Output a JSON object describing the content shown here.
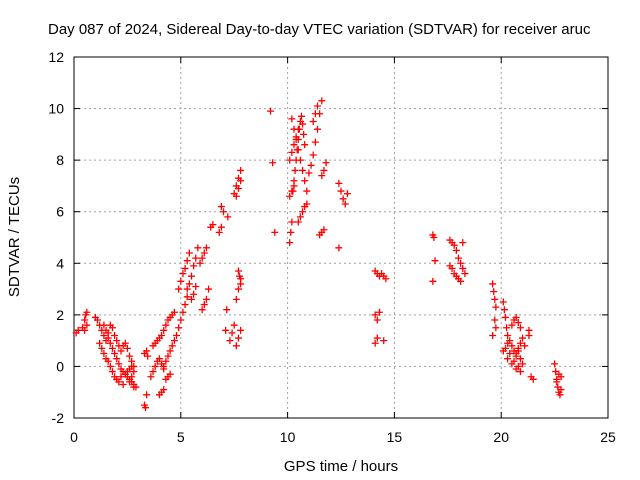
{
  "chart_data": {
    "type": "scatter",
    "title": "Day 087 of 2024, Sidereal Day-to-day VTEC variation (SDTVAR) for receiver aruc",
    "xlabel": "GPS time / hours",
    "ylabel": "SDTVAR / TECUs",
    "xlim": [
      0,
      25
    ],
    "ylim": [
      -2,
      12
    ],
    "xticks": [
      "0",
      "5",
      "10",
      "15",
      "20",
      "25"
    ],
    "yticks": [
      "-2",
      "0",
      "2",
      "4",
      "6",
      "8",
      "10",
      "12"
    ],
    "grid": true,
    "marker": "+",
    "series": [
      {
        "name": "SDTVAR",
        "color": "#ff0000",
        "x": [
          0.1,
          0.2,
          0.4,
          0.5,
          0.55,
          0.6,
          0.5,
          0.6,
          1.0,
          1.1,
          1.2,
          1.3,
          1.4,
          1.5,
          1.6,
          1.7,
          1.8,
          1.9,
          2.0,
          2.1,
          2.2,
          2.3,
          2.4,
          2.5,
          2.6,
          2.7,
          2.8,
          1.4,
          1.5,
          1.6,
          1.7,
          1.8,
          1.9,
          2.0,
          2.1,
          2.2,
          2.3,
          2.4,
          2.5,
          2.6,
          2.7,
          2.8,
          2.9,
          1.2,
          1.3,
          1.4,
          1.5,
          1.6,
          1.7,
          1.8,
          1.9,
          2.0,
          2.1,
          2.2,
          2.3,
          2.4,
          2.5,
          2.6,
          2.7,
          2.8,
          2.6,
          2.7,
          2.8,
          3.3,
          3.35,
          3.4,
          3.3,
          3.4,
          3.45,
          3.6,
          3.7,
          3.8,
          3.9,
          4.0,
          4.1,
          4.2,
          3.7,
          3.8,
          3.9,
          4.0,
          4.1,
          4.2,
          4.3,
          4.4,
          4.5,
          4.6,
          4.7,
          4.2,
          4.3,
          4.4,
          4.5,
          4.6,
          4.7,
          4.0,
          4.1,
          4.2,
          4.3,
          4.4,
          4.5,
          4.8,
          4.9,
          5.0,
          5.1,
          5.2,
          5.3,
          4.9,
          5.0,
          5.1,
          5.2,
          5.3,
          5.4,
          5.3,
          5.4,
          5.5,
          5.6,
          5.7,
          5.8,
          5.5,
          5.6,
          5.7,
          5.9,
          6.0,
          6.1,
          6.2,
          6.0,
          6.1,
          6.2,
          6.3,
          6.4,
          6.5,
          6.8,
          6.9,
          7.0,
          6.9,
          7.1,
          7.2,
          7.15,
          7.3,
          7.4,
          7.5,
          7.6,
          7.7,
          7.8,
          7.7,
          7.8,
          7.75,
          7.5,
          7.6,
          7.7,
          7.8,
          7.6,
          7.7,
          7.8,
          7.6,
          7.7,
          7.8,
          9.2,
          9.3,
          9.4,
          10.1,
          10.15,
          10.2,
          10.25,
          10.3,
          10.35,
          10.4,
          10.45,
          10.5,
          10.55,
          10.6,
          10.65,
          10.7,
          10.75,
          10.8,
          10.2,
          10.3,
          10.4,
          10.5,
          10.6,
          10.7,
          10.8,
          10.9,
          10.1,
          10.2,
          10.3,
          10.4,
          10.5,
          10.1,
          10.2,
          10.3,
          10.5,
          10.6,
          10.7,
          10.8,
          10.9,
          11.0,
          11.1,
          11.2,
          11.3,
          11.4,
          11.5,
          11.6,
          11.2,
          11.3,
          11.4,
          11.6,
          11.7,
          11.8,
          11.5,
          11.6,
          11.7,
          12.4,
          12.5,
          12.6,
          12.7,
          12.8,
          12.4,
          14.1,
          14.2,
          14.3,
          14.4,
          14.5,
          14.6,
          14.1,
          14.2,
          14.3,
          14.1,
          14.2,
          14.5,
          16.8,
          16.85,
          16.9,
          16.8,
          17.6,
          17.7,
          17.8,
          17.9,
          18.0,
          18.1,
          18.2,
          18.3,
          17.6,
          17.7,
          17.8,
          17.9,
          18.0,
          18.1,
          18.2,
          19.6,
          19.65,
          19.7,
          19.75,
          19.7,
          19.75,
          19.6,
          20.1,
          20.15,
          20.2,
          20.25,
          20.3,
          20.1,
          20.2,
          20.3,
          20.4,
          20.5,
          20.6,
          20.7,
          20.8,
          20.9,
          21.0,
          21.1,
          20.3,
          20.4,
          20.5,
          20.6,
          20.7,
          20.8,
          20.9,
          21.0,
          20.5,
          20.6,
          20.7,
          20.8,
          20.9,
          20.7,
          20.8,
          20.9,
          21.3,
          21.4,
          21.5,
          21.3,
          22.5,
          22.55,
          22.6,
          22.65,
          22.7,
          22.75,
          22.8,
          22.6,
          22.7,
          22.8
        ],
        "y": [
          1.3,
          1.4,
          1.5,
          1.8,
          2.0,
          2.1,
          1.4,
          1.6,
          1.9,
          1.8,
          1.6,
          1.4,
          1.2,
          1.0,
          1.3,
          1.6,
          1.5,
          1.2,
          1.0,
          0.8,
          0.6,
          0.8,
          0.9,
          0.7,
          0.4,
          0.2,
          0.0,
          1.6,
          1.4,
          1.1,
          0.9,
          0.7,
          0.5,
          0.3,
          0.1,
          -0.1,
          -0.2,
          -0.3,
          -0.4,
          -0.5,
          -0.6,
          -0.7,
          -0.8,
          0.9,
          0.7,
          0.5,
          0.3,
          0.2,
          0.0,
          -0.2,
          -0.4,
          -0.5,
          -0.6,
          -0.4,
          -0.7,
          -0.3,
          -0.2,
          -0.1,
          0.0,
          -0.2,
          -0.6,
          -0.4,
          -0.8,
          -1.5,
          -1.6,
          -1.1,
          0.5,
          0.6,
          0.4,
          -0.4,
          -0.2,
          0.0,
          0.2,
          0.3,
          0.1,
          -0.1,
          0.8,
          0.9,
          1.0,
          1.1,
          1.2,
          1.4,
          1.6,
          1.8,
          1.9,
          2.0,
          2.1,
          0.0,
          0.2,
          0.4,
          0.6,
          0.8,
          1.0,
          -1.1,
          -1.0,
          -0.9,
          -0.5,
          -0.4,
          -0.3,
          1.2,
          1.5,
          1.8,
          2.1,
          2.4,
          2.7,
          3.0,
          3.3,
          3.6,
          3.8,
          4.1,
          4.4,
          3.0,
          3.2,
          3.5,
          3.9,
          4.2,
          4.6,
          2.6,
          2.8,
          3.1,
          4.0,
          4.2,
          4.4,
          4.6,
          2.2,
          2.4,
          2.6,
          3.0,
          5.4,
          5.5,
          5.2,
          5.4,
          6.0,
          6.2,
          1.4,
          5.8,
          2.2,
          1.0,
          1.3,
          1.6,
          2.6,
          3.0,
          3.4,
          3.7,
          3.2,
          3.5,
          6.7,
          7.0,
          7.3,
          7.6,
          6.6,
          6.9,
          7.2,
          0.8,
          1.1,
          1.4,
          9.9,
          7.9,
          5.2,
          4.8,
          5.2,
          5.6,
          6.8,
          7.2,
          7.6,
          8.0,
          8.4,
          8.8,
          9.2,
          9.5,
          9.7,
          9.4,
          9.0,
          8.6,
          9.6,
          9.2,
          8.8,
          8.4,
          8.0,
          7.6,
          7.2,
          6.8,
          8.0,
          8.3,
          8.6,
          8.9,
          9.2,
          6.6,
          6.8,
          7.0,
          5.6,
          5.8,
          6.0,
          6.2,
          6.3,
          7.5,
          7.8,
          8.2,
          8.7,
          9.2,
          9.8,
          10.3,
          9.5,
          9.8,
          10.1,
          7.4,
          7.6,
          7.9,
          5.1,
          5.2,
          5.3,
          7.1,
          6.8,
          6.5,
          6.3,
          6.7,
          4.6,
          3.7,
          3.6,
          3.5,
          3.6,
          3.5,
          3.4,
          2.0,
          1.8,
          2.1,
          0.9,
          1.1,
          1.0,
          5.1,
          5.0,
          4.1,
          3.3,
          4.9,
          4.8,
          4.7,
          4.5,
          4.2,
          4.0,
          3.8,
          3.6,
          3.9,
          3.8,
          3.6,
          3.5,
          3.4,
          3.3,
          4.8,
          3.2,
          2.9,
          2.6,
          2.3,
          1.8,
          1.5,
          1.2,
          2.5,
          2.2,
          1.9,
          1.5,
          1.2,
          0.6,
          0.7,
          0.9,
          1.0,
          0.8,
          0.6,
          0.5,
          0.7,
          0.9,
          1.1,
          0.8,
          0.3,
          0.5,
          0.1,
          0.2,
          0.4,
          0.6,
          0.3,
          0.1,
          1.6,
          1.8,
          1.9,
          1.7,
          1.5,
          -0.1,
          0.0,
          -0.2,
          1.2,
          -0.4,
          -0.5,
          1.4,
          0.1,
          -0.2,
          -0.5,
          -0.8,
          -1.0,
          -1.1,
          -0.4,
          -0.6,
          -0.3,
          -0.9
        ]
      }
    ]
  }
}
